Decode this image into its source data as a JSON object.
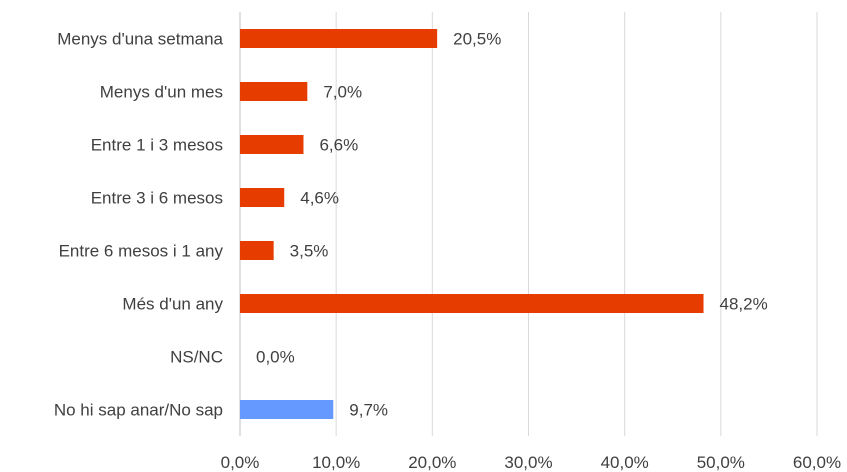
{
  "chart_data": {
    "type": "bar",
    "orientation": "horizontal",
    "title": "",
    "xlabel": "",
    "ylabel": "",
    "xlim": [
      0,
      60
    ],
    "grid": true,
    "legend": "none",
    "categories": [
      "Menys d'una setmana",
      "Menys d'un mes",
      "Entre 1 i 3 mesos",
      "Entre 3 i 6 mesos",
      "Entre 6 mesos i 1 any",
      "Més d'un any",
      "NS/NC",
      "No hi sap anar/No sap"
    ],
    "values": [
      20.5,
      7.0,
      6.6,
      4.6,
      3.5,
      48.2,
      0.0,
      9.7
    ],
    "value_labels": [
      "20,5%",
      "7,0%",
      "6,6%",
      "4,6%",
      "3,5%",
      "48,2%",
      "0,0%",
      "9,7%"
    ],
    "bar_colors": [
      "#e63c00",
      "#e63c00",
      "#e63c00",
      "#e63c00",
      "#e63c00",
      "#e63c00",
      "#e63c00",
      "#6699ff"
    ],
    "ticks": [
      0,
      10,
      20,
      30,
      40,
      50,
      60
    ],
    "tick_labels": [
      "0,0%",
      "10,0%",
      "20,0%",
      "30,0%",
      "40,0%",
      "50,0%",
      "60,0%"
    ]
  }
}
